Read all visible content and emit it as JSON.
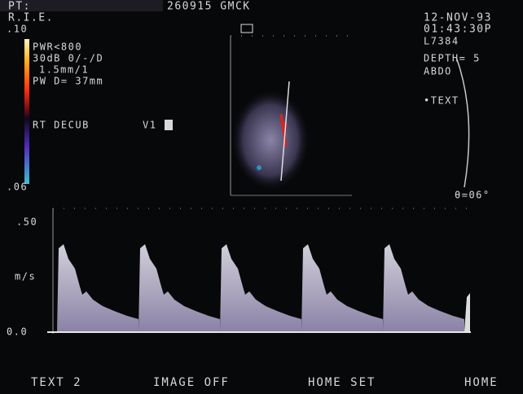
{
  "header": {
    "patient": "PT:",
    "id": "260915 GMCK",
    "institution": "R.I.E."
  },
  "left_panel": {
    "scale_top": ".10",
    "power": "PWR<800",
    "gain": "30dB 0/-/D",
    "gate": "1.5mm/1",
    "depth": "PW D= 37mm",
    "position": "RT DECUB",
    "view": "V1",
    "scale_bottom": ".06"
  },
  "right_panel": {
    "date": "12-NOV-93",
    "time": "01:43:30P",
    "transducer": "L7384",
    "depth": "DEPTH= 5",
    "preset": "ABDO",
    "text_mark": "•TEXT",
    "angle": "θ=06°"
  },
  "doppler": {
    "top_label": ".50",
    "unit": "m/s",
    "baseline_label": "0.0"
  },
  "softkeys": [
    "TEXT 2",
    "IMAGE OFF",
    "HOME SET",
    "HOME"
  ]
}
